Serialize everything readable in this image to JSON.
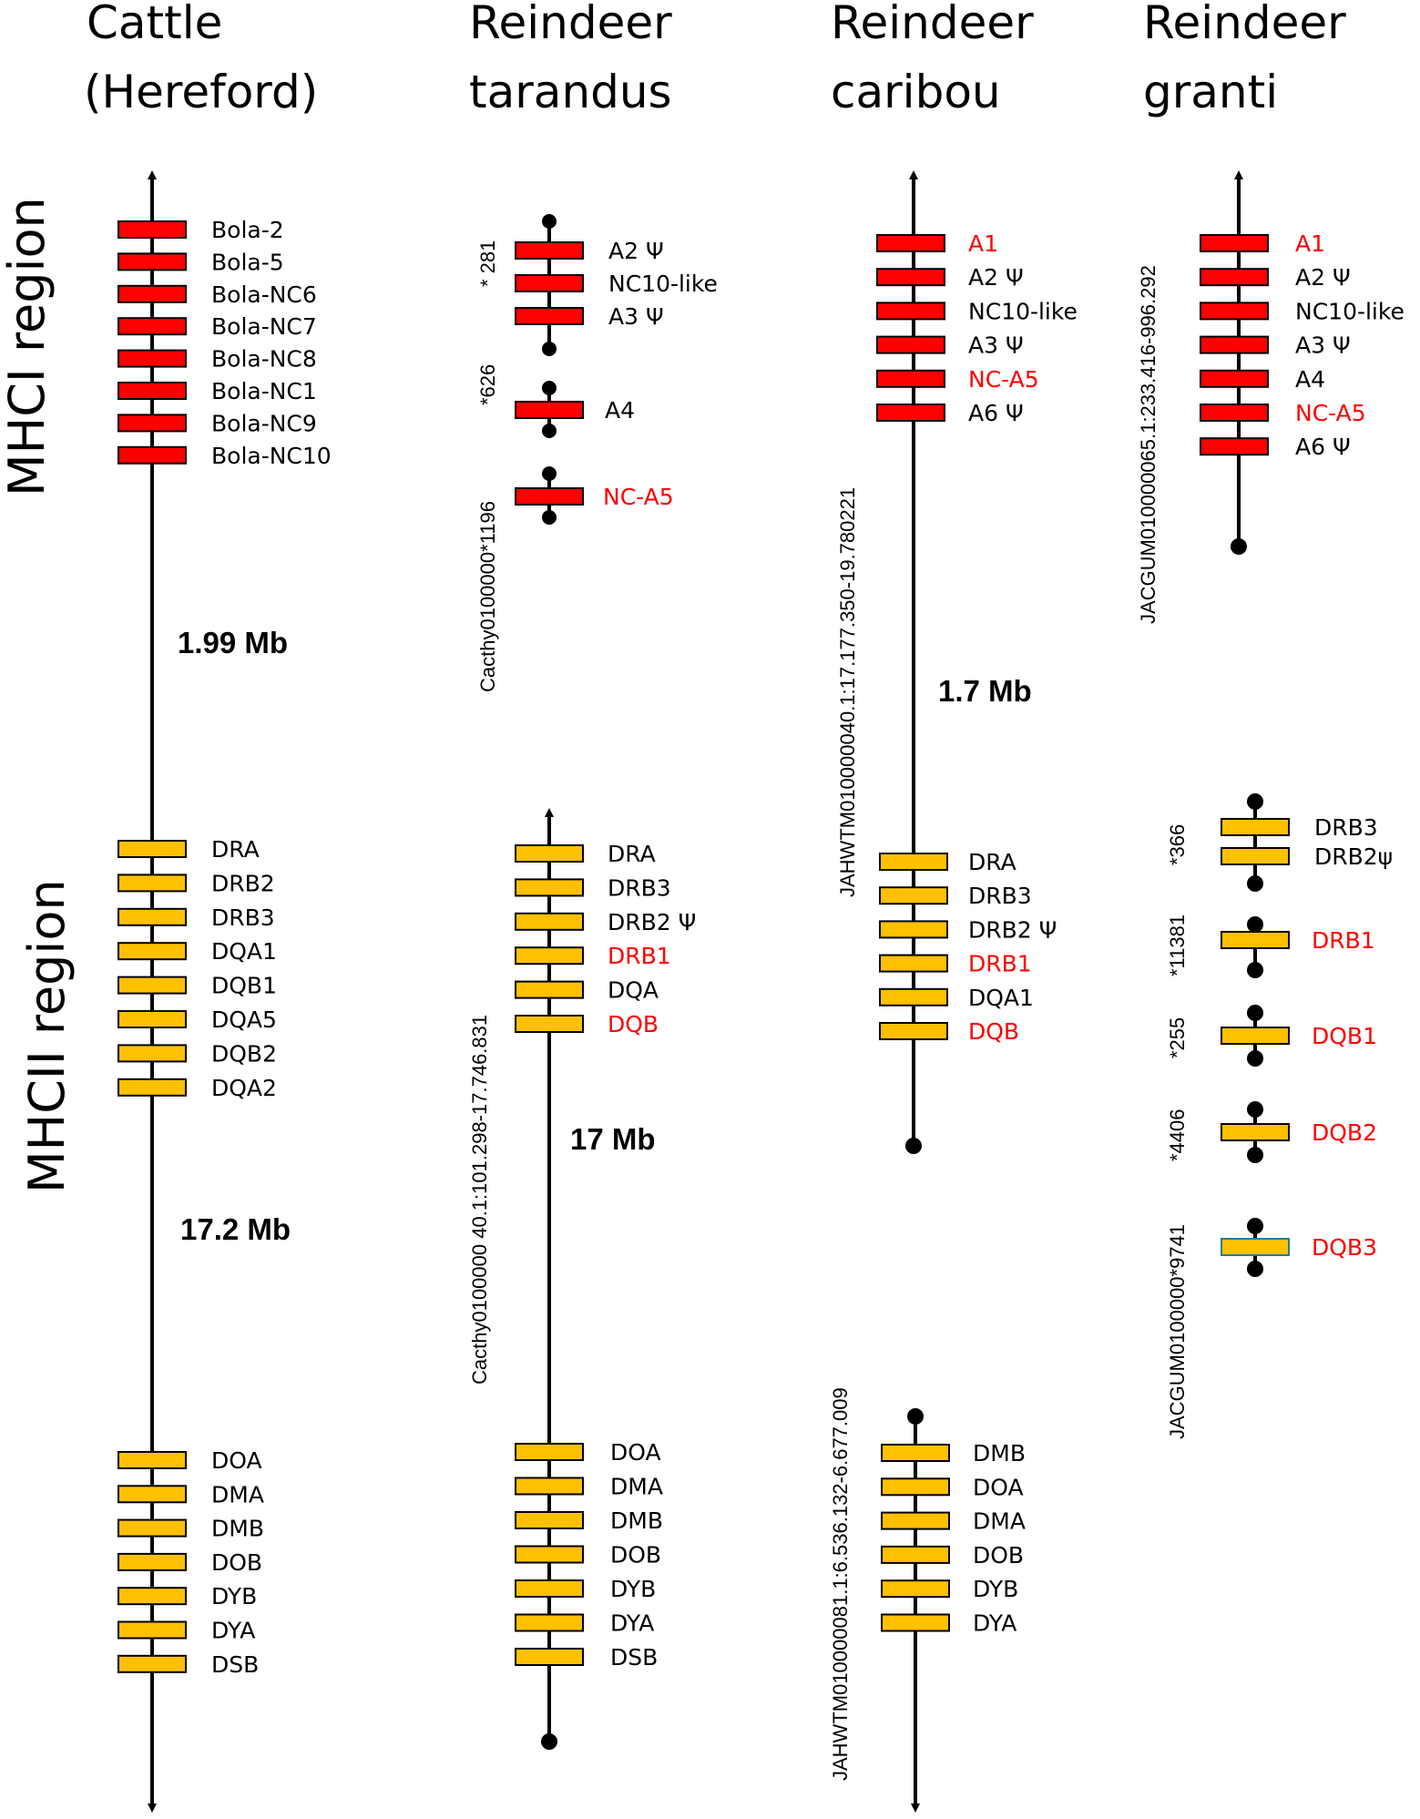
{
  "colors": {
    "mhc1_fill": "#ff0000",
    "mhc2_fill": "#ffc000",
    "mhc2_fill_teal_border": "#1f7f9a",
    "red_text": "#ff0000",
    "black": "#000000"
  },
  "region_labels": {
    "mhc1": "MHCI region",
    "mhc2": "MHCII region"
  },
  "columns": {
    "cattle": {
      "title_line1": "Cattle",
      "title_line2": "(Hereford)",
      "mhc1_genes": [
        "Bola-2",
        "Bola-5",
        "Bola-NC6",
        "Bola-NC7",
        "Bola-NC8",
        "Bola-NC1",
        "Bola-NC9",
        "Bola-NC10"
      ],
      "distance_1": "1.99 Mb",
      "mhc2_genes_a": [
        "DRA",
        "DRB2",
        "DRB3",
        "DQA1",
        "DQB1",
        "DQA5",
        "DQB2",
        "DQA2"
      ],
      "distance_2": "17.2 Mb",
      "mhc2_genes_b": [
        "DOA",
        "DMA",
        "DMB",
        "DOB",
        "DYB",
        "DYA",
        "DSB"
      ]
    },
    "tarandus": {
      "title_line1": "Reindeer",
      "title_line2": "tarandus",
      "acc_1": "Cacthy0100000*1196",
      "acc_1_s1": "* 281",
      "acc_1_s2": "*626",
      "frag1_genes": [
        {
          "label": "A2 Ψ",
          "red": false
        },
        {
          "label": "NC10-like",
          "red": false
        },
        {
          "label": "A3 Ψ",
          "red": false
        }
      ],
      "frag2_genes": [
        {
          "label": "A4",
          "red": false
        }
      ],
      "frag3_genes": [
        {
          "label": "NC-A5",
          "red": true
        }
      ],
      "mhc2_genes_a": [
        {
          "label": "DRA",
          "red": false
        },
        {
          "label": "DRB3",
          "red": false
        },
        {
          "label": "DRB2 Ψ",
          "red": false
        },
        {
          "label": "DRB1",
          "red": true
        },
        {
          "label": "DQA",
          "red": false
        },
        {
          "label": "DQB",
          "red": true
        }
      ],
      "distance": "17 Mb",
      "acc_2": "Cacthy0100000 40.1:101.298-17.746.831",
      "mhc2_genes_b": [
        "DOA",
        "DMA",
        "DMB",
        "DOB",
        "DYB",
        "DYA",
        "DSB"
      ]
    },
    "caribou": {
      "title_line1": "Reindeer",
      "title_line2": "caribou",
      "mhc1_genes": [
        {
          "label": "A1",
          "red": true
        },
        {
          "label": "A2 Ψ",
          "red": false
        },
        {
          "label": "NC10-like",
          "red": false
        },
        {
          "label": "A3 Ψ",
          "red": false
        },
        {
          "label": "NC-A5",
          "red": true
        },
        {
          "label": "A6 Ψ",
          "red": false
        }
      ],
      "distance": "1.7 Mb",
      "acc_1": "JAHWTM010000040.1:17.177.350-19.780221",
      "mhc2_genes_a": [
        {
          "label": "DRA",
          "red": false
        },
        {
          "label": "DRB3",
          "red": false
        },
        {
          "label": "DRB2 Ψ",
          "red": false
        },
        {
          "label": "DRB1",
          "red": true
        },
        {
          "label": "DQA1",
          "red": false
        },
        {
          "label": "DQB",
          "red": true
        }
      ],
      "acc_2": "JAHWTM010000081.1:6.536.132-6.677.009",
      "mhc2_genes_b": [
        "DMB",
        "DOA",
        "DMA",
        "DOB",
        "DYB",
        "DYA"
      ]
    },
    "granti": {
      "title_line1": "Reindeer",
      "title_line2": "granti",
      "acc_1": "JACGUM010000065.1:233.416-996.292",
      "mhc1_genes": [
        {
          "label": "A1",
          "red": true
        },
        {
          "label": "A2 Ψ",
          "red": false
        },
        {
          "label": "NC10-like",
          "red": false
        },
        {
          "label": "A3 Ψ",
          "red": false
        },
        {
          "label": "A4",
          "red": false
        },
        {
          "label": "NC-A5",
          "red": true
        },
        {
          "label": "A6 Ψ",
          "red": false
        }
      ],
      "acc_2": "JACGUM0100000*9741",
      "acc_2_s1": "*366",
      "acc_2_s2": "*11381",
      "acc_2_s3": "*255",
      "acc_2_s4": "*4406",
      "frag1_genes": [
        {
          "label": "DRB3",
          "red": false
        },
        {
          "label": "DRB2ψ",
          "red": false
        }
      ],
      "frag2_genes": [
        {
          "label": "DRB1",
          "red": true
        }
      ],
      "frag3_genes": [
        {
          "label": "DQB1",
          "red": true
        }
      ],
      "frag4_genes": [
        {
          "label": "DQB2",
          "red": true
        }
      ],
      "frag5_genes": [
        {
          "label": "DQB3",
          "red": true
        }
      ]
    }
  }
}
